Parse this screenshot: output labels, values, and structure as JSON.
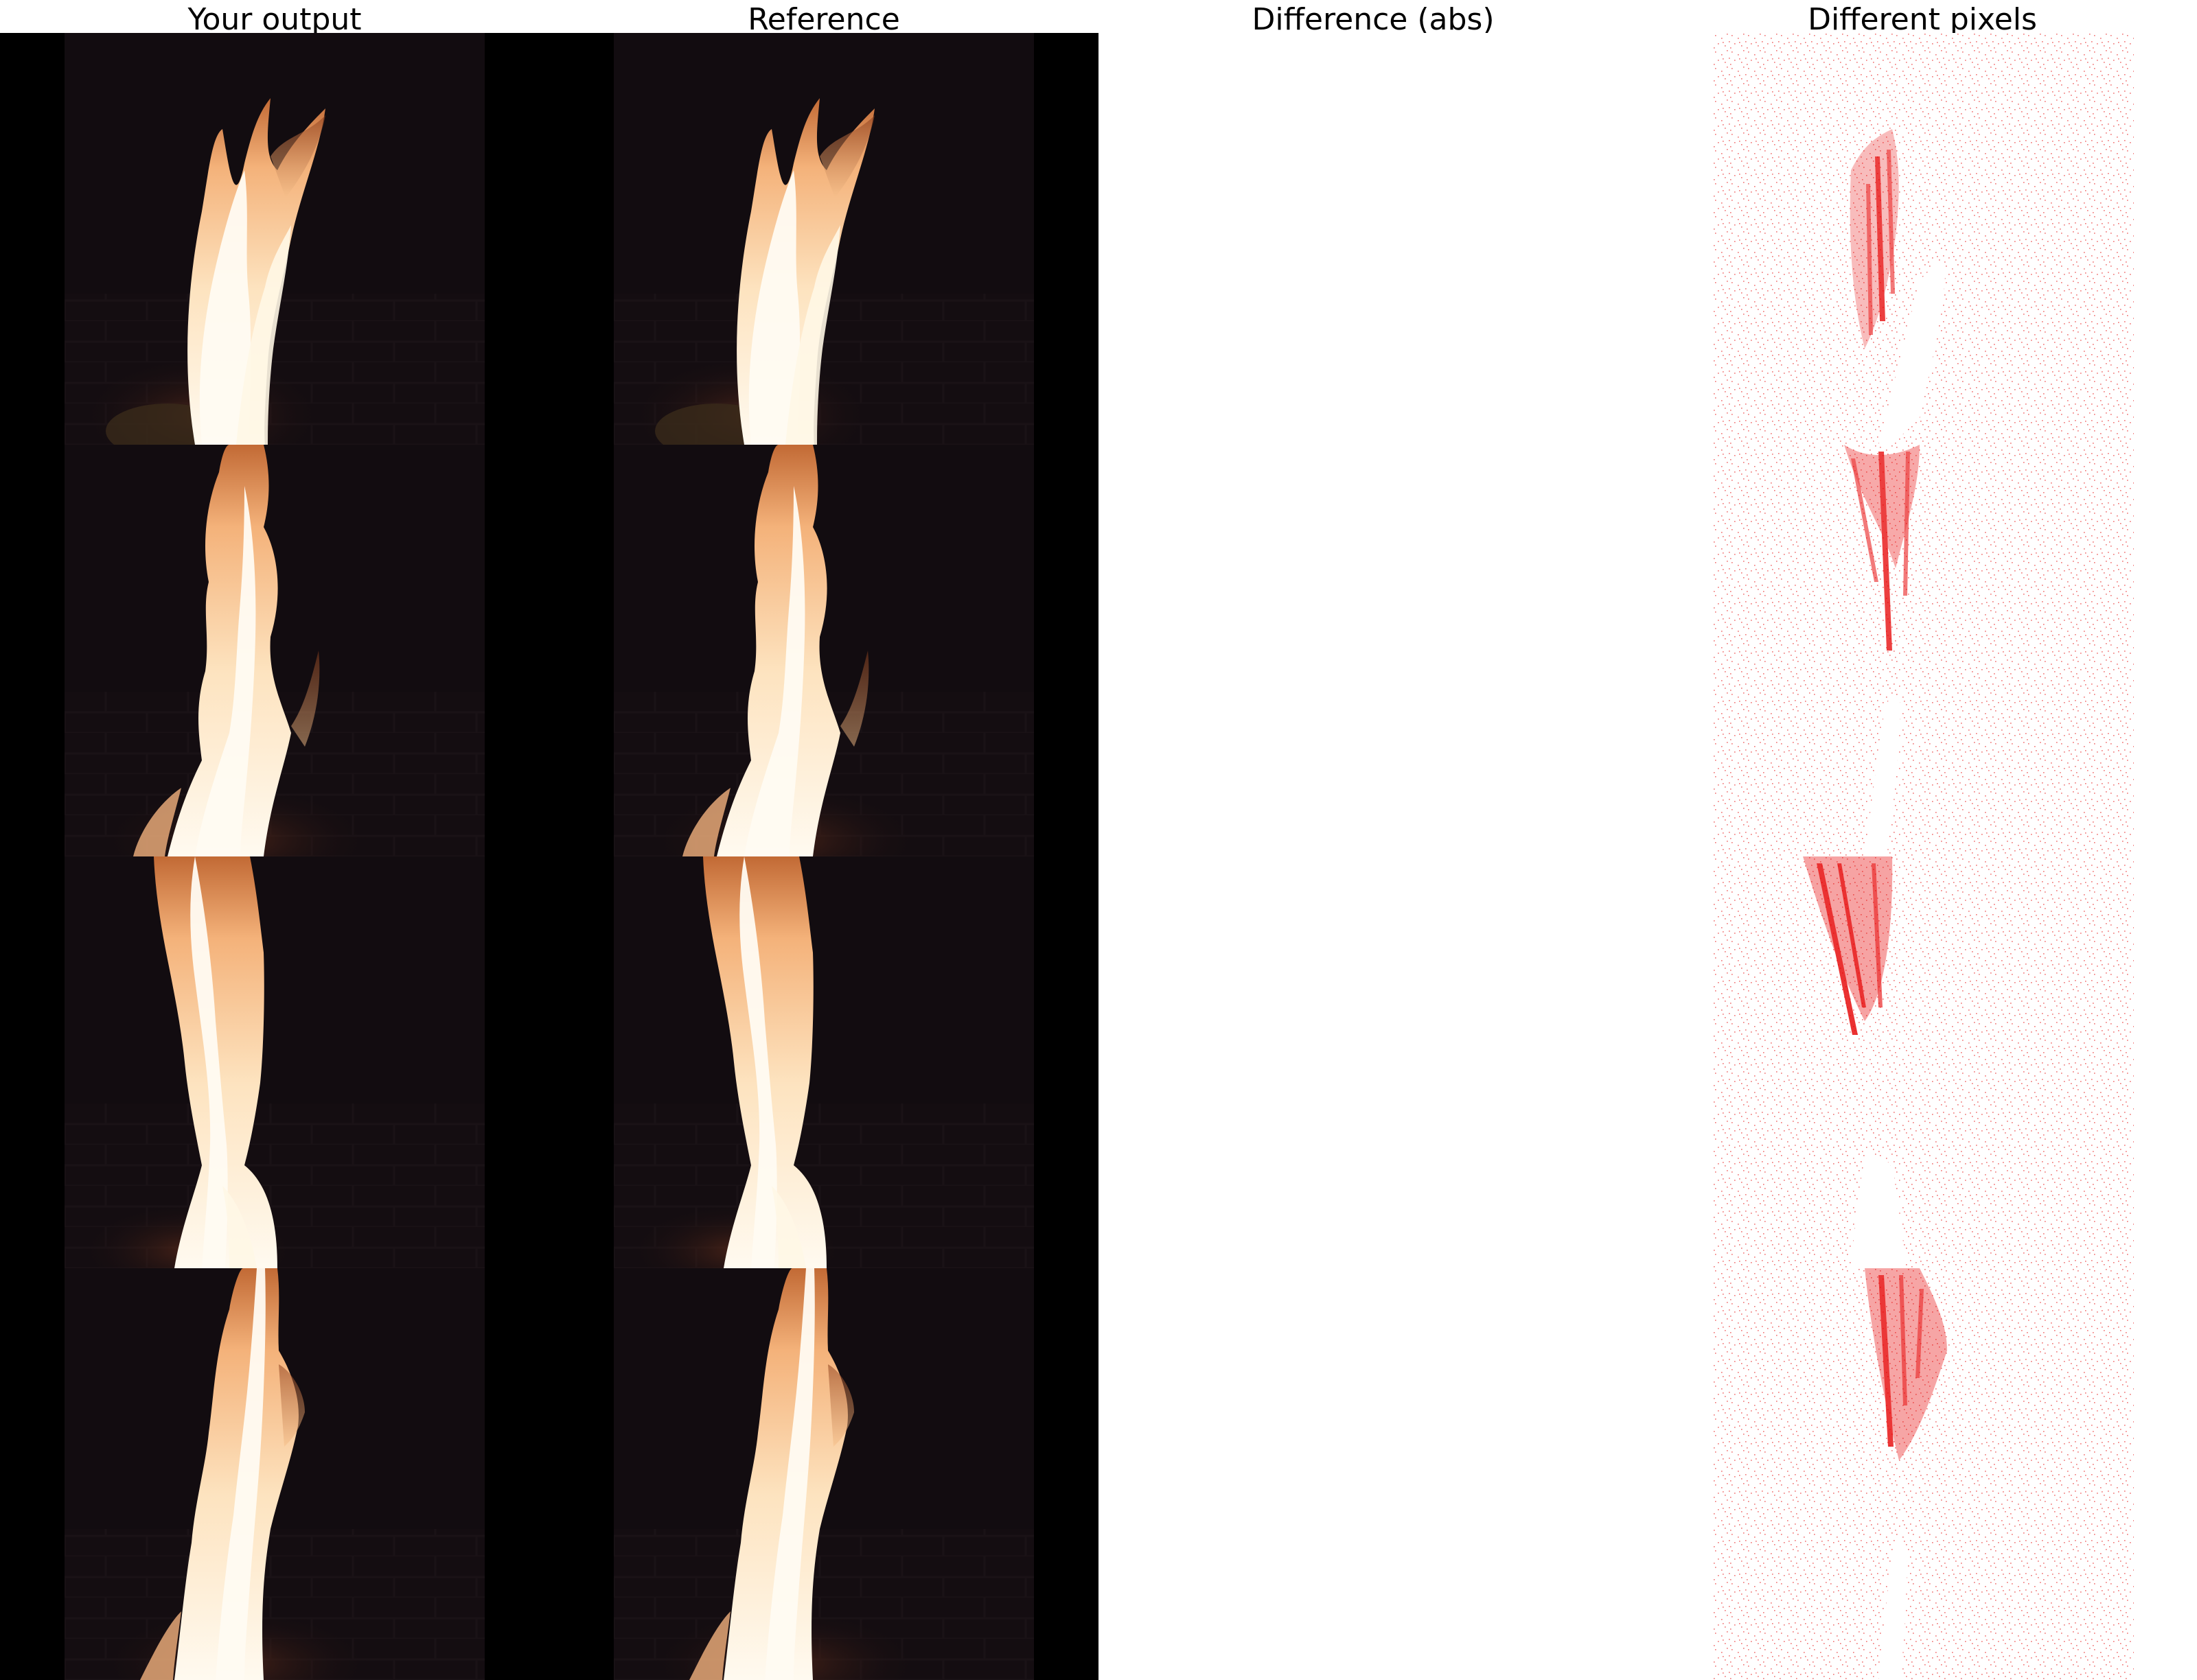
{
  "titles": {
    "output": "Your output",
    "reference": "Reference",
    "difference": "Difference (abs)",
    "different_pixels": "Different pixels"
  },
  "colors": {
    "background": "#ffffff",
    "panel_black": "#000000",
    "scene_dark": "#130d10",
    "flame_core": "#fff3d8",
    "flame_mid": "#f6b97a",
    "flame_edge": "#b25a2a",
    "diff_red": "#e60000"
  },
  "frames": {
    "count": 4
  }
}
